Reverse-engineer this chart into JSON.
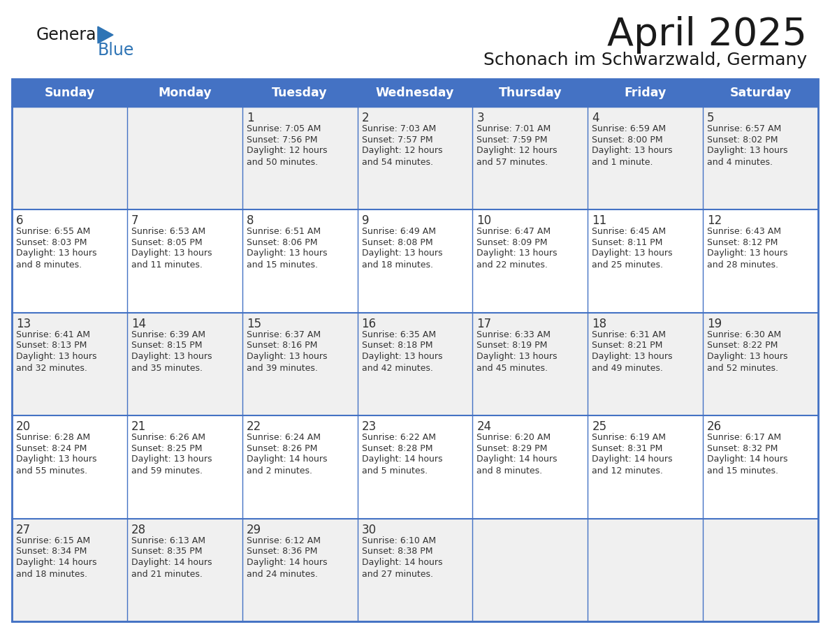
{
  "title": "April 2025",
  "subtitle": "Schonach im Schwarzwald, Germany",
  "days_of_week": [
    "Sunday",
    "Monday",
    "Tuesday",
    "Wednesday",
    "Thursday",
    "Friday",
    "Saturday"
  ],
  "header_bg": "#4472C4",
  "header_text_color": "#FFFFFF",
  "row_bg_odd": "#F0F0F0",
  "row_bg_even": "#FFFFFF",
  "border_color": "#4472C4",
  "text_color": "#333333",
  "title_color": "#1a1a1a",
  "blue_color": "#2E74B5",
  "calendar_data": [
    [
      null,
      null,
      {
        "day": 1,
        "sunrise": "7:05 AM",
        "sunset": "7:56 PM",
        "daylight": "12 hours\nand 50 minutes."
      },
      {
        "day": 2,
        "sunrise": "7:03 AM",
        "sunset": "7:57 PM",
        "daylight": "12 hours\nand 54 minutes."
      },
      {
        "day": 3,
        "sunrise": "7:01 AM",
        "sunset": "7:59 PM",
        "daylight": "12 hours\nand 57 minutes."
      },
      {
        "day": 4,
        "sunrise": "6:59 AM",
        "sunset": "8:00 PM",
        "daylight": "13 hours\nand 1 minute."
      },
      {
        "day": 5,
        "sunrise": "6:57 AM",
        "sunset": "8:02 PM",
        "daylight": "13 hours\nand 4 minutes."
      }
    ],
    [
      {
        "day": 6,
        "sunrise": "6:55 AM",
        "sunset": "8:03 PM",
        "daylight": "13 hours\nand 8 minutes."
      },
      {
        "day": 7,
        "sunrise": "6:53 AM",
        "sunset": "8:05 PM",
        "daylight": "13 hours\nand 11 minutes."
      },
      {
        "day": 8,
        "sunrise": "6:51 AM",
        "sunset": "8:06 PM",
        "daylight": "13 hours\nand 15 minutes."
      },
      {
        "day": 9,
        "sunrise": "6:49 AM",
        "sunset": "8:08 PM",
        "daylight": "13 hours\nand 18 minutes."
      },
      {
        "day": 10,
        "sunrise": "6:47 AM",
        "sunset": "8:09 PM",
        "daylight": "13 hours\nand 22 minutes."
      },
      {
        "day": 11,
        "sunrise": "6:45 AM",
        "sunset": "8:11 PM",
        "daylight": "13 hours\nand 25 minutes."
      },
      {
        "day": 12,
        "sunrise": "6:43 AM",
        "sunset": "8:12 PM",
        "daylight": "13 hours\nand 28 minutes."
      }
    ],
    [
      {
        "day": 13,
        "sunrise": "6:41 AM",
        "sunset": "8:13 PM",
        "daylight": "13 hours\nand 32 minutes."
      },
      {
        "day": 14,
        "sunrise": "6:39 AM",
        "sunset": "8:15 PM",
        "daylight": "13 hours\nand 35 minutes."
      },
      {
        "day": 15,
        "sunrise": "6:37 AM",
        "sunset": "8:16 PM",
        "daylight": "13 hours\nand 39 minutes."
      },
      {
        "day": 16,
        "sunrise": "6:35 AM",
        "sunset": "8:18 PM",
        "daylight": "13 hours\nand 42 minutes."
      },
      {
        "day": 17,
        "sunrise": "6:33 AM",
        "sunset": "8:19 PM",
        "daylight": "13 hours\nand 45 minutes."
      },
      {
        "day": 18,
        "sunrise": "6:31 AM",
        "sunset": "8:21 PM",
        "daylight": "13 hours\nand 49 minutes."
      },
      {
        "day": 19,
        "sunrise": "6:30 AM",
        "sunset": "8:22 PM",
        "daylight": "13 hours\nand 52 minutes."
      }
    ],
    [
      {
        "day": 20,
        "sunrise": "6:28 AM",
        "sunset": "8:24 PM",
        "daylight": "13 hours\nand 55 minutes."
      },
      {
        "day": 21,
        "sunrise": "6:26 AM",
        "sunset": "8:25 PM",
        "daylight": "13 hours\nand 59 minutes."
      },
      {
        "day": 22,
        "sunrise": "6:24 AM",
        "sunset": "8:26 PM",
        "daylight": "14 hours\nand 2 minutes."
      },
      {
        "day": 23,
        "sunrise": "6:22 AM",
        "sunset": "8:28 PM",
        "daylight": "14 hours\nand 5 minutes."
      },
      {
        "day": 24,
        "sunrise": "6:20 AM",
        "sunset": "8:29 PM",
        "daylight": "14 hours\nand 8 minutes."
      },
      {
        "day": 25,
        "sunrise": "6:19 AM",
        "sunset": "8:31 PM",
        "daylight": "14 hours\nand 12 minutes."
      },
      {
        "day": 26,
        "sunrise": "6:17 AM",
        "sunset": "8:32 PM",
        "daylight": "14 hours\nand 15 minutes."
      }
    ],
    [
      {
        "day": 27,
        "sunrise": "6:15 AM",
        "sunset": "8:34 PM",
        "daylight": "14 hours\nand 18 minutes."
      },
      {
        "day": 28,
        "sunrise": "6:13 AM",
        "sunset": "8:35 PM",
        "daylight": "14 hours\nand 21 minutes."
      },
      {
        "day": 29,
        "sunrise": "6:12 AM",
        "sunset": "8:36 PM",
        "daylight": "14 hours\nand 24 minutes."
      },
      {
        "day": 30,
        "sunrise": "6:10 AM",
        "sunset": "8:38 PM",
        "daylight": "14 hours\nand 27 minutes."
      },
      null,
      null,
      null
    ]
  ]
}
